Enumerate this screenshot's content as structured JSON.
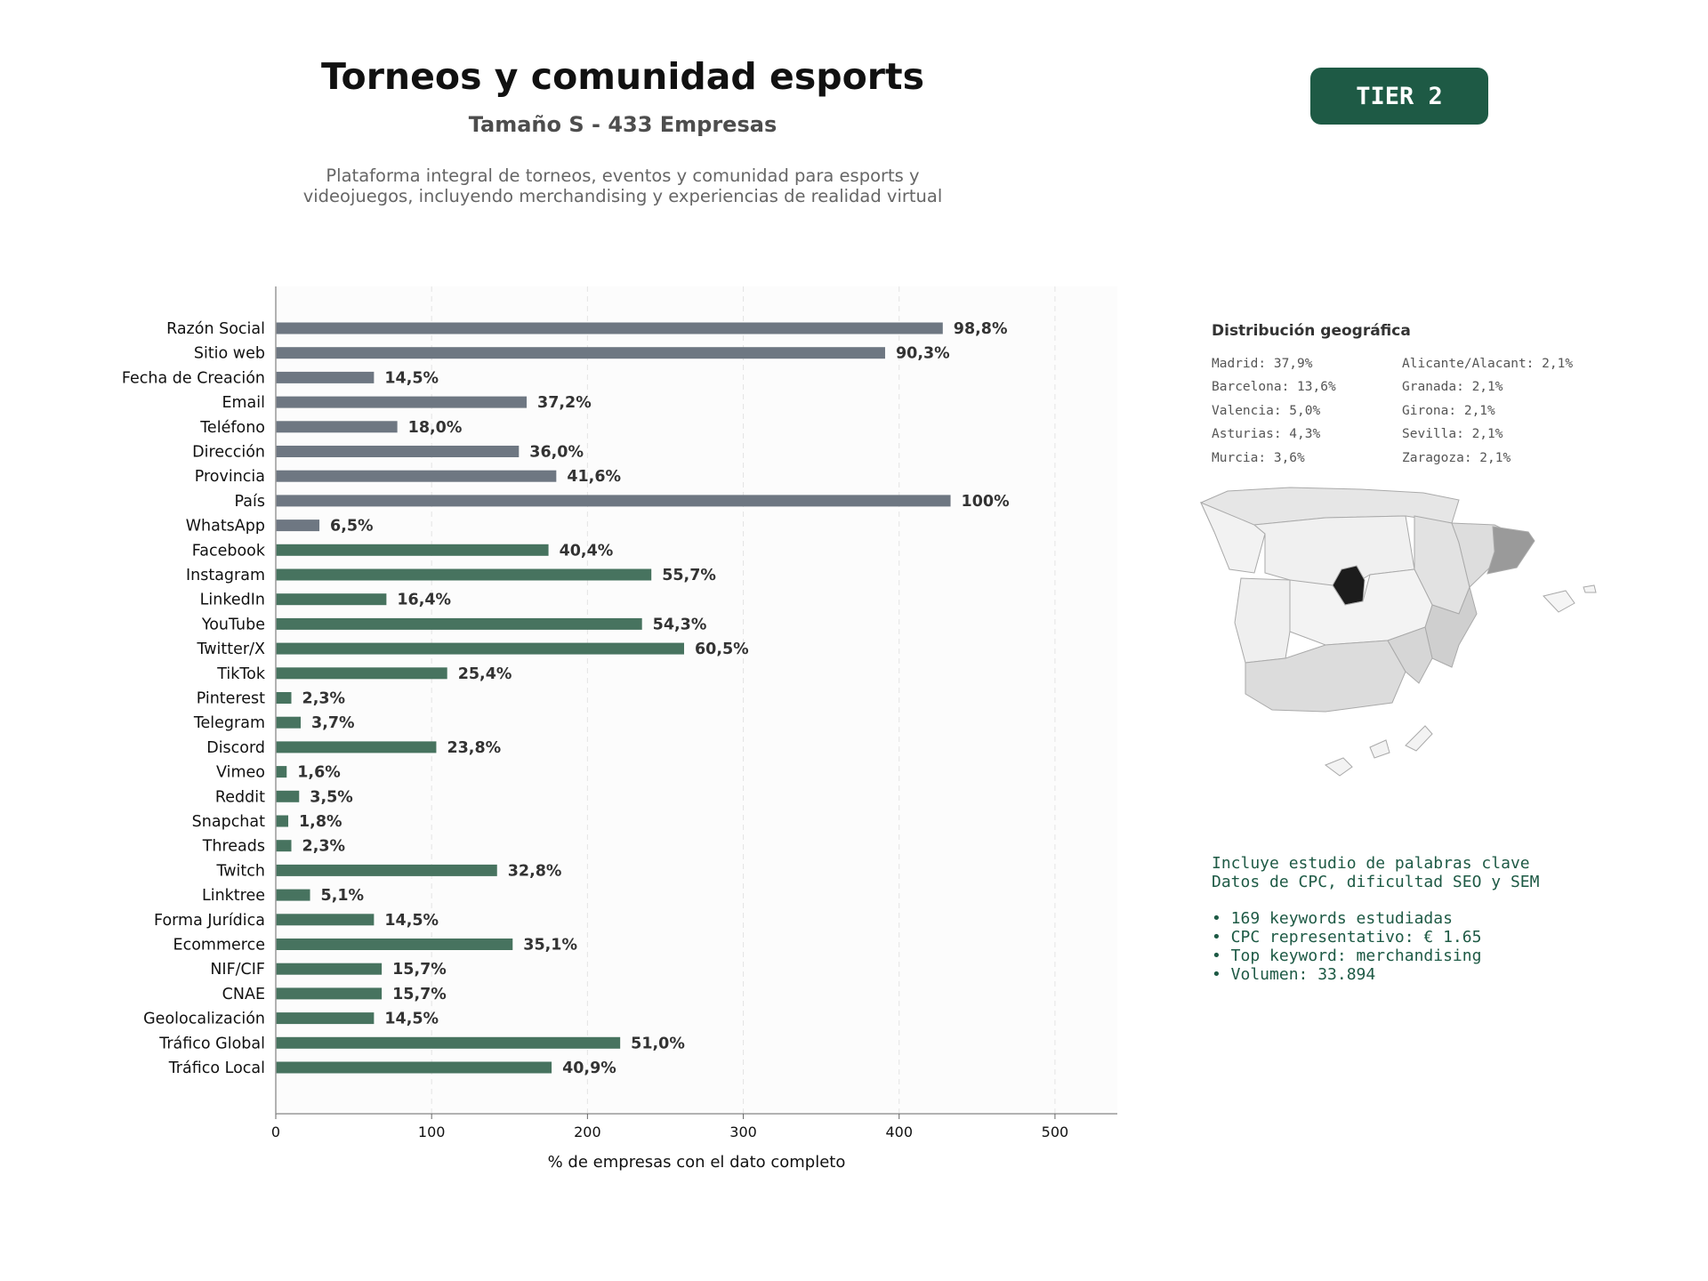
{
  "header": {
    "title": "Torneos y comunidad esports",
    "subtitle": "Tamaño S - 433 Empresas",
    "description": "Plataforma integral de torneos, eventos y comunidad para esports y videojuegos, incluyendo merchandising y experiencias de realidad virtual",
    "tier": "TIER 2"
  },
  "chart_data": {
    "type": "bar",
    "orientation": "horizontal",
    "xlabel": "% de empresas con el dato completo",
    "xlim": [
      0,
      540
    ],
    "xticks": [
      0,
      100,
      200,
      300,
      400,
      500
    ],
    "grid": "vertical dashed",
    "colors": {
      "basic": "#6e7782",
      "digital": "#47735f"
    },
    "categories": [
      "Razón Social",
      "Sitio web",
      "Fecha de Creación",
      "Email",
      "Teléfono",
      "Dirección",
      "Provincia",
      "País",
      "WhatsApp",
      "Facebook",
      "Instagram",
      "LinkedIn",
      "YouTube",
      "Twitter/X",
      "TikTok",
      "Pinterest",
      "Telegram",
      "Discord",
      "Vimeo",
      "Reddit",
      "Snapchat",
      "Threads",
      "Twitch",
      "Linktree",
      "Forma Jurídica",
      "Ecommerce",
      "NIF/CIF",
      "CNAE",
      "Geolocalización",
      "Tráfico Global",
      "Tráfico Local"
    ],
    "values": [
      428,
      391,
      63,
      161,
      78,
      156,
      180,
      433,
      28,
      175,
      241,
      71,
      235,
      262,
      110,
      10,
      16,
      103,
      7,
      15,
      8,
      10,
      142,
      22,
      63,
      152,
      68,
      68,
      63,
      221,
      177
    ],
    "labels": [
      "98,8%",
      "90,3%",
      "14,5%",
      "37,2%",
      "18,0%",
      "36,0%",
      "41,6%",
      "100%",
      "6,5%",
      "40,4%",
      "55,7%",
      "16,4%",
      "54,3%",
      "60,5%",
      "25,4%",
      "2,3%",
      "3,7%",
      "23,8%",
      "1,6%",
      "3,5%",
      "1,8%",
      "2,3%",
      "32,8%",
      "5,1%",
      "14,5%",
      "35,1%",
      "15,7%",
      "15,7%",
      "14,5%",
      "51,0%",
      "40,9%"
    ],
    "groups": [
      "basic",
      "basic",
      "basic",
      "basic",
      "basic",
      "basic",
      "basic",
      "basic",
      "basic",
      "digital",
      "digital",
      "digital",
      "digital",
      "digital",
      "digital",
      "digital",
      "digital",
      "digital",
      "digital",
      "digital",
      "digital",
      "digital",
      "digital",
      "digital",
      "digital",
      "digital",
      "digital",
      "digital",
      "digital",
      "digital",
      "digital"
    ]
  },
  "geo": {
    "title": "Distribución geográfica",
    "left": [
      "Madrid: 37,9%",
      "Barcelona: 13,6%",
      "Valencia: 5,0%",
      "Asturias: 4,3%",
      "Murcia: 3,6%"
    ],
    "right": [
      "Alicante/Alacant: 2,1%",
      "Granada: 2,1%",
      "Girona: 2,1%",
      "Sevilla: 2,1%",
      "Zaragoza: 2,1%"
    ]
  },
  "keywords": {
    "line1": "Incluye estudio de palabras clave",
    "line2": "Datos de CPC, dificultad SEO y SEM",
    "bullets": [
      "• 169 keywords estudiadas",
      "• CPC representativo: € 1.65",
      "• Top keyword: merchandising",
      "• Volumen: 33.894"
    ]
  }
}
